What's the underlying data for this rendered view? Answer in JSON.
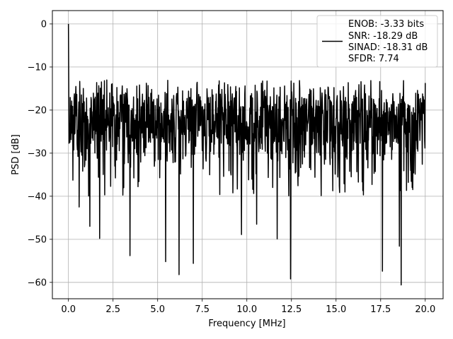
{
  "chart_data": {
    "type": "line",
    "title": "",
    "xlabel": "Frequency [MHz]",
    "ylabel": "PSD [dB]",
    "xlim": [
      -0.9,
      21.0
    ],
    "ylim": [
      -63.8,
      3.1
    ],
    "xticks": [
      0.0,
      2.5,
      5.0,
      7.5,
      10.0,
      12.5,
      15.0,
      17.5,
      20.0
    ],
    "xtick_labels": [
      "0.0",
      "2.5",
      "5.0",
      "7.5",
      "10.0",
      "12.5",
      "15.0",
      "17.5",
      "20.0"
    ],
    "yticks": [
      0,
      -10,
      -20,
      -30,
      -40,
      -50,
      -60
    ],
    "ytick_labels": [
      "0",
      "−10",
      "−20",
      "−30",
      "−40",
      "−50",
      "−60"
    ],
    "grid": true,
    "legend_position": "top-right",
    "series": [
      {
        "color": "#000000",
        "x_range": [
          0.0,
          20.0
        ],
        "peak": {
          "x": 0.0,
          "y": 0.0
        },
        "noise_floor_typical": [
          -32,
          -16
        ],
        "notable_dips": [
          {
            "x": 0.6,
            "y": -42.5
          },
          {
            "x": 1.2,
            "y": -47
          },
          {
            "x": 1.75,
            "y": -49.8
          },
          {
            "x": 3.45,
            "y": -53.8
          },
          {
            "x": 5.45,
            "y": -55.2
          },
          {
            "x": 6.2,
            "y": -58.2
          },
          {
            "x": 7.0,
            "y": -55.6
          },
          {
            "x": 9.7,
            "y": -48.9
          },
          {
            "x": 10.55,
            "y": -46.5
          },
          {
            "x": 11.7,
            "y": -49.9
          },
          {
            "x": 12.45,
            "y": -59.2
          },
          {
            "x": 17.6,
            "y": -57.4
          },
          {
            "x": 18.55,
            "y": -51.6
          },
          {
            "x": 18.65,
            "y": -60.6
          }
        ]
      }
    ],
    "legend_lines": [
      "ENOB: -3.33 bits",
      "SNR: -18.29 dB",
      "SINAD: -18.31 dB",
      "SFDR: 7.74"
    ]
  }
}
